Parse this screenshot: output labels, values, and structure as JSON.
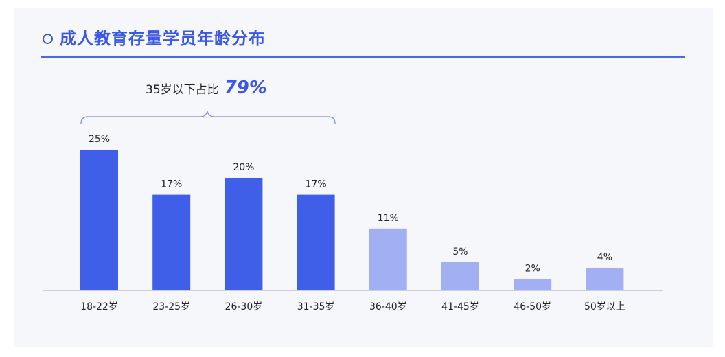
{
  "title": "成人教育存量学员年龄分布",
  "annotation": {
    "text": "35岁以下占比",
    "value": "79%"
  },
  "colors": {
    "accent": "#3a57e8",
    "bar_primary": "#3f5fe8",
    "bar_secondary": "#a2b0f3"
  },
  "chart_data": {
    "type": "bar",
    "title": "成人教育存量学员年龄分布",
    "categories": [
      "18-22岁",
      "23-25岁",
      "26-30岁",
      "31-35岁",
      "36-40岁",
      "41-45岁",
      "46-50岁",
      "50岁以上"
    ],
    "values": [
      25,
      17,
      20,
      17,
      11,
      5,
      2,
      4
    ],
    "value_labels": [
      "25%",
      "17%",
      "20%",
      "17%",
      "11%",
      "5%",
      "2%",
      "4%"
    ],
    "highlighted": [
      true,
      true,
      true,
      true,
      false,
      false,
      false,
      false
    ],
    "ylim": [
      0,
      25
    ],
    "grid": false,
    "xlabel": "",
    "ylabel": ""
  }
}
